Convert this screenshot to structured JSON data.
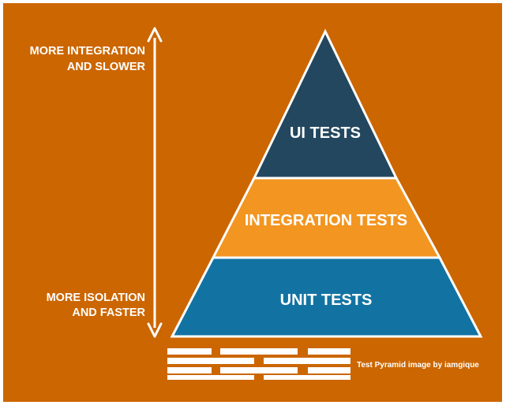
{
  "diagram": {
    "labels": {
      "top_line1": "MORE INTEGRATION",
      "top_line2": "AND SLOWER",
      "bottom_line1": "MORE ISOLATION",
      "bottom_line2": "AND FASTER"
    },
    "layers": {
      "ui": "UI TESTS",
      "integration": "INTEGRATION TESTS",
      "unit": "UNIT TESTS"
    },
    "caption": "Test Pyramid image by iamgique",
    "colors": {
      "background": "#CC6600",
      "ui_layer": "#23475F",
      "integration_layer": "#F29521",
      "unit_layer": "#1273A3",
      "outline": "#FFFFFF",
      "text": "#FFFFFF"
    }
  }
}
